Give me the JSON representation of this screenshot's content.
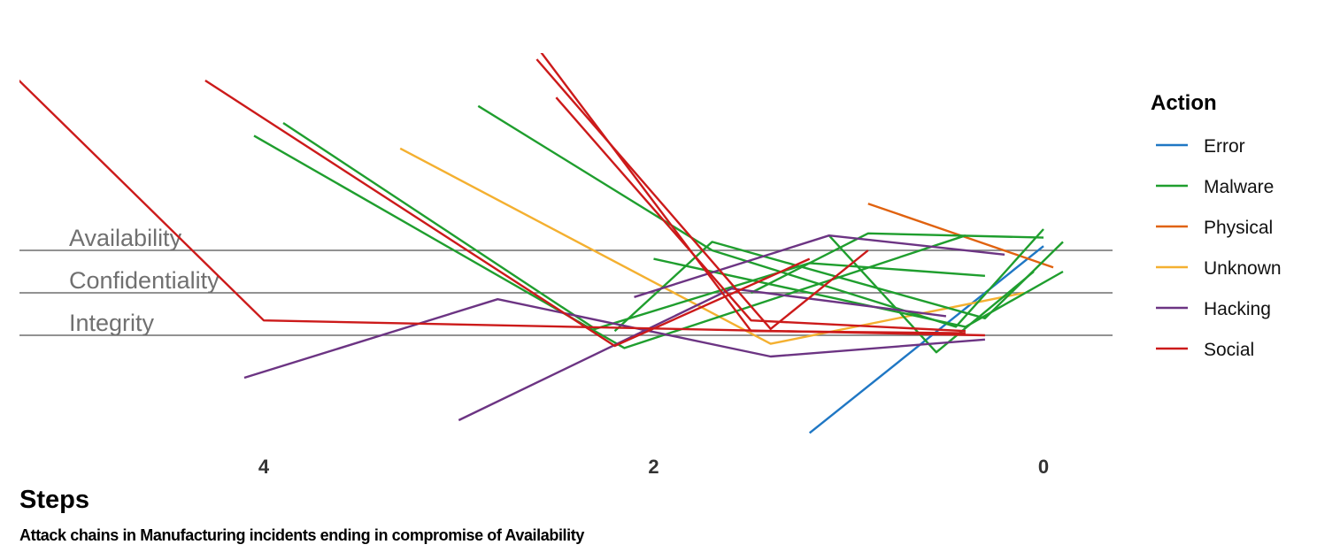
{
  "chart_data": {
    "type": "line",
    "title": "Attack chains in Manufacturing incidents ending in compromise of Availability",
    "xlabel": "Steps",
    "ylabel": "",
    "x_reversed": true,
    "xlim": [
      5.4,
      -0.2
    ],
    "ylim": [
      -2.4,
      4.7
    ],
    "x_ticks": [
      4,
      2,
      0
    ],
    "reference_lines": [
      {
        "label": "Availability",
        "y": 2
      },
      {
        "label": "Confidentiality",
        "y": 1
      },
      {
        "label": "Integrity",
        "y": 0
      }
    ],
    "legend": {
      "title": "Action",
      "entries": [
        {
          "name": "Error",
          "color": "#1f77c4"
        },
        {
          "name": "Malware",
          "color": "#1f9e2e"
        },
        {
          "name": "Physical",
          "color": "#e0620f"
        },
        {
          "name": "Unknown",
          "color": "#f4b030"
        },
        {
          "name": "Hacking",
          "color": "#6c3483"
        },
        {
          "name": "Social",
          "color": "#cc1a1a"
        }
      ]
    },
    "series": [
      {
        "action": "Error",
        "points": [
          [
            1.2,
            -2.3
          ],
          [
            0.0,
            2.1
          ]
        ]
      },
      {
        "action": "Physical",
        "points": [
          [
            0.9,
            3.1
          ],
          [
            -0.05,
            1.6
          ]
        ]
      },
      {
        "action": "Unknown",
        "points": [
          [
            3.3,
            4.4
          ],
          [
            1.4,
            -0.2
          ],
          [
            0.1,
            1.0
          ]
        ]
      },
      {
        "action": "Malware",
        "points": [
          [
            4.05,
            4.7
          ],
          [
            2.15,
            -0.3
          ],
          [
            0.4,
            2.35
          ]
        ]
      },
      {
        "action": "Malware",
        "points": [
          [
            3.9,
            5.0
          ],
          [
            2.3,
            0.15
          ],
          [
            1.2,
            1.7
          ],
          [
            0.3,
            1.4
          ]
        ]
      },
      {
        "action": "Malware",
        "points": [
          [
            2.9,
            5.4
          ],
          [
            1.7,
            2.0
          ],
          [
            0.45,
            0.2
          ],
          [
            0.0,
            2.5
          ]
        ]
      },
      {
        "action": "Malware",
        "points": [
          [
            2.2,
            0.1
          ],
          [
            1.7,
            2.2
          ],
          [
            0.3,
            0.4
          ],
          [
            -0.1,
            2.2
          ]
        ]
      },
      {
        "action": "Malware",
        "points": [
          [
            1.5,
            1.0
          ],
          [
            0.9,
            2.4
          ],
          [
            0.0,
            2.3
          ]
        ]
      },
      {
        "action": "Malware",
        "points": [
          [
            1.1,
            2.35
          ],
          [
            0.55,
            -0.4
          ],
          [
            0.05,
            1.5
          ]
        ]
      },
      {
        "action": "Malware",
        "points": [
          [
            2.0,
            1.8
          ],
          [
            0.4,
            0.2
          ],
          [
            -0.1,
            1.5
          ]
        ]
      },
      {
        "action": "Hacking",
        "points": [
          [
            4.1,
            -1.0
          ],
          [
            2.8,
            0.85
          ],
          [
            1.4,
            -0.5
          ],
          [
            0.3,
            -0.1
          ]
        ]
      },
      {
        "action": "Hacking",
        "points": [
          [
            3.0,
            -2.0
          ],
          [
            1.6,
            1.1
          ],
          [
            0.5,
            0.45
          ]
        ]
      },
      {
        "action": "Hacking",
        "points": [
          [
            2.1,
            0.9
          ],
          [
            1.1,
            2.35
          ],
          [
            0.2,
            1.9
          ]
        ]
      },
      {
        "action": "Social",
        "points": [
          [
            5.3,
            6.2
          ],
          [
            4.0,
            0.35
          ],
          [
            0.3,
            0.0
          ]
        ]
      },
      {
        "action": "Social",
        "points": [
          [
            4.3,
            6.0
          ],
          [
            2.2,
            -0.25
          ],
          [
            1.2,
            1.8
          ]
        ]
      },
      {
        "action": "Social",
        "points": [
          [
            2.6,
            6.5
          ],
          [
            1.4,
            0.15
          ],
          [
            0.9,
            2.0
          ]
        ]
      },
      {
        "action": "Social",
        "points": [
          [
            2.5,
            5.6
          ],
          [
            1.5,
            0.35
          ],
          [
            0.4,
            0.1
          ]
        ]
      },
      {
        "action": "Social",
        "points": [
          [
            2.6,
            6.8
          ],
          [
            1.5,
            0.1
          ],
          [
            0.4,
            0.05
          ]
        ]
      }
    ]
  }
}
